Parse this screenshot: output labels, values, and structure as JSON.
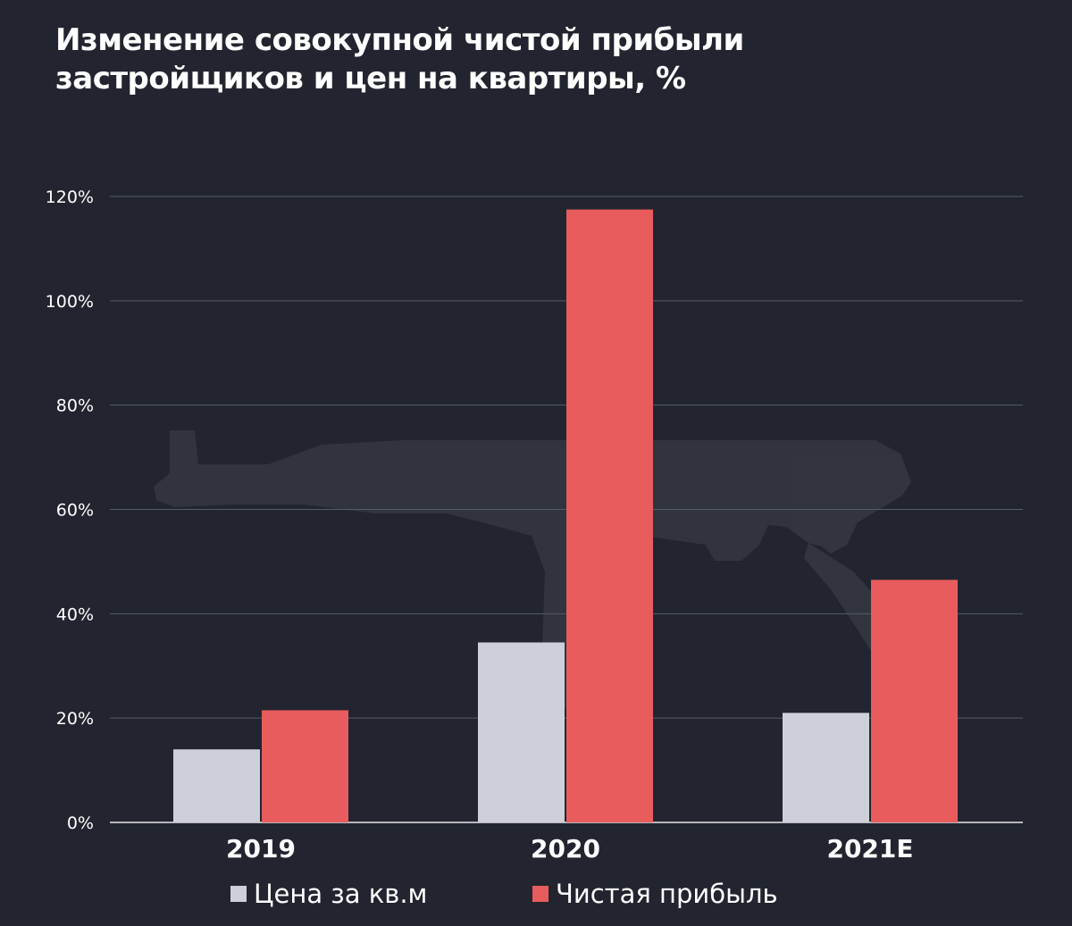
{
  "title_lines": [
    "Изменение совокупной чистой прибыли",
    "застройщиков и цен на квартиры, %"
  ],
  "colors": {
    "background": "#22252f",
    "price": "#cdcfd9",
    "profit": "#e85c5d",
    "grid": "#575b66",
    "text": "#ffffff"
  },
  "chart_data": {
    "type": "bar",
    "title": "Изменение совокупной чистой прибыли застройщиков и цен на квартиры, %",
    "categories": [
      "2019",
      "2020",
      "2021E"
    ],
    "series": [
      {
        "name": "Цена за кв.м",
        "values": [
          14,
          34.5,
          21
        ]
      },
      {
        "name": "Чистая прибыль",
        "values": [
          21.5,
          117.5,
          46.5
        ]
      }
    ],
    "ylim": [
      0,
      120
    ],
    "yticks": [
      0,
      20,
      40,
      60,
      80,
      100,
      120
    ],
    "ytick_labels": [
      "0%",
      "20%",
      "40%",
      "60%",
      "80%",
      "100%",
      "120%"
    ],
    "grid": true,
    "legend_position": "bottom"
  }
}
